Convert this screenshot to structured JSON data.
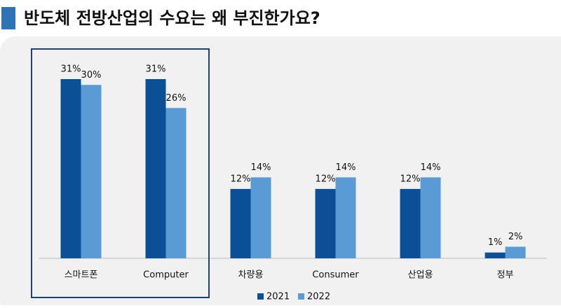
{
  "chart_data": {
    "type": "bar",
    "title": "반도체 전방산업의 수요는 왜 부진한가요?",
    "categories": [
      "스마트폰",
      "Computer",
      "차량용",
      "Consumer",
      "산업용",
      "정부"
    ],
    "series": [
      {
        "name": "2021",
        "color": "#0b4f96",
        "values": [
          31,
          31,
          12,
          12,
          12,
          1
        ],
        "value_labels": [
          "31%",
          "31%",
          "12%",
          "12%",
          "12%",
          "1%"
        ]
      },
      {
        "name": "2022",
        "color": "#5b9bd5",
        "values": [
          30,
          26,
          14,
          14,
          14,
          2
        ],
        "value_labels": [
          "30%",
          "26%",
          "14%",
          "14%",
          "14%",
          "2%"
        ]
      }
    ]
  }
}
